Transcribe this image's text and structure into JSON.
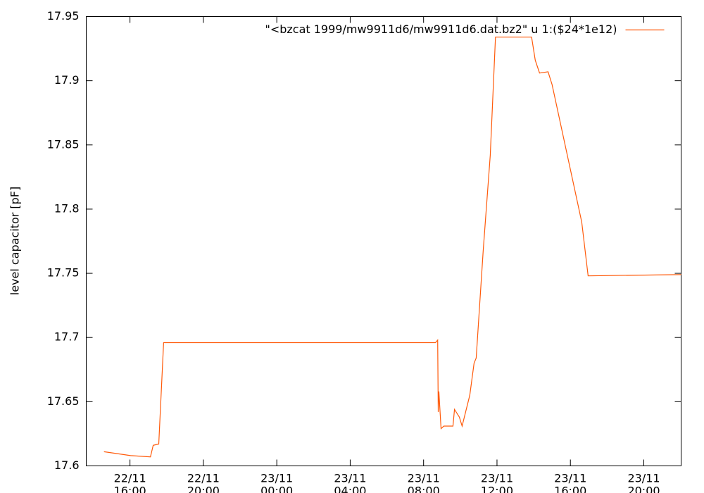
{
  "chart_data": {
    "type": "line",
    "ylabel": "level capacitor [pF]",
    "x": [
      "22/11 14:35",
      "22/11 16:02",
      "22/11 17:07",
      "22/11 17:16",
      "22/11 17:34",
      "22/11 17:50",
      "22/11 18:27",
      "23/11 08:39",
      "23/11 08:46",
      "23/11 08:48",
      "23/11 08:50",
      "23/11 08:57",
      "23/11 09:06",
      "23/11 09:36",
      "23/11 09:41",
      "23/11 09:57",
      "23/11 10:06",
      "23/11 10:31",
      "23/11 10:45",
      "23/11 10:52",
      "23/11 11:15",
      "23/11 11:38",
      "23/11 11:55",
      "23/11 13:53",
      "23/11 14:05",
      "23/11 14:19",
      "23/11 14:47",
      "23/11 15:00",
      "23/11 16:37",
      "23/11 16:58",
      "23/11 22:02"
    ],
    "series": [
      {
        "name": "\"<bzcat 1999/mw9911d6/mw9911d6.dat.bz2\" u 1:($24*1e12)",
        "color": "#ff5a0a",
        "values": [
          17.611,
          17.608,
          17.607,
          17.616,
          17.617,
          17.696,
          17.696,
          17.696,
          17.698,
          17.642,
          17.658,
          17.629,
          17.631,
          17.631,
          17.644,
          17.638,
          17.631,
          17.655,
          17.68,
          17.684,
          17.768,
          17.842,
          17.934,
          17.934,
          17.916,
          17.906,
          17.907,
          17.897,
          17.79,
          17.748,
          17.749
        ]
      }
    ],
    "xlim": [
      "22/11 13:37",
      "23/11 22:02"
    ],
    "xticks": [
      "22/11 16:00",
      "22/11 20:00",
      "23/11 00:00",
      "23/11 04:00",
      "23/11 08:00",
      "23/11 12:00",
      "23/11 16:00",
      "23/11 20:00"
    ],
    "ylim": [
      17.6,
      17.95
    ],
    "yticks": [
      17.6,
      17.65,
      17.7,
      17.75,
      17.8,
      17.85,
      17.9,
      17.95
    ],
    "legend": "top right"
  }
}
